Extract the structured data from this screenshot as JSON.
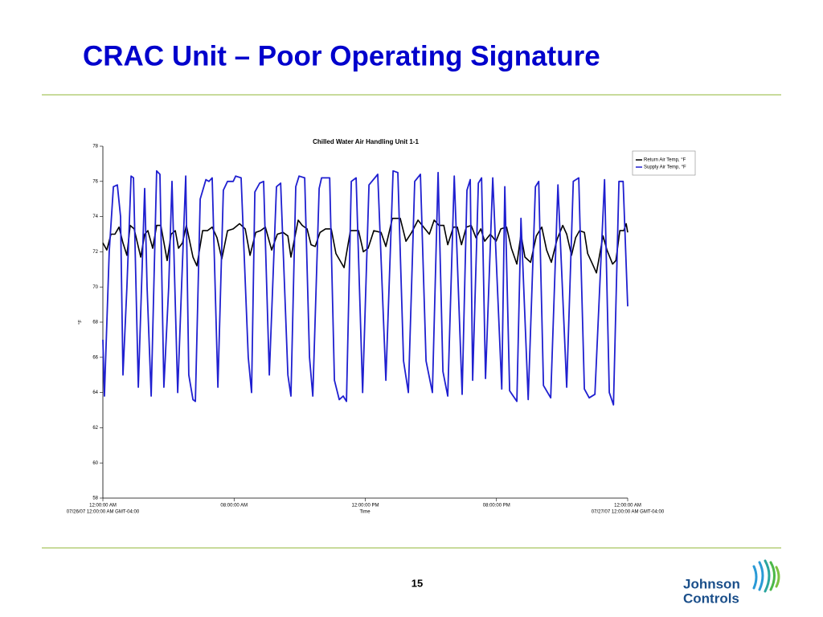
{
  "slide": {
    "title": "CRAC Unit – Poor Operating Signature",
    "page_number": "15"
  },
  "logo": {
    "line1": "Johnson",
    "line2": "Controls"
  },
  "chart_data": {
    "type": "line",
    "title": "Chilled Water Air Handling Unit 1-1",
    "xlabel": "Time",
    "ylabel": "°F",
    "xlim": [
      0,
      24
    ],
    "xticks": [
      {
        "value": 0,
        "label": "12:00:00 AM"
      },
      {
        "value": 6,
        "label": "08:00:00 AM"
      },
      {
        "value": 12,
        "label": "12:00:00 PM"
      },
      {
        "value": 18,
        "label": "08:00:00 PM"
      },
      {
        "value": 24,
        "label": "12:00:00 AM"
      }
    ],
    "xtick_dates": [
      "07/26/07 12:00:00 AM GMT-04:00",
      "07/27/07 12:00:00 AM GMT-04:00"
    ],
    "ylim": [
      58,
      78
    ],
    "yticks": [
      58,
      60,
      62,
      64,
      66,
      68,
      70,
      72,
      74,
      76,
      78
    ],
    "legend": "upper right",
    "series": [
      {
        "name": "Return Air Temp, °F",
        "color": "#000000",
        "x": [
          0,
          0.18,
          0.37,
          0.55,
          0.74,
          0.92,
          1.1,
          1.25,
          1.43,
          1.73,
          1.91,
          2.06,
          2.28,
          2.46,
          2.65,
          2.94,
          3.12,
          3.31,
          3.46,
          3.64,
          3.82,
          4.12,
          4.3,
          4.56,
          4.78,
          5.0,
          5.22,
          5.44,
          5.7,
          5.96,
          6.25,
          6.51,
          6.73,
          6.99,
          7.21,
          7.43,
          7.72,
          7.98,
          8.24,
          8.46,
          8.6,
          8.93,
          9.12,
          9.34,
          9.52,
          9.71,
          9.93,
          10.18,
          10.44,
          10.66,
          11.03,
          11.32,
          11.69,
          11.91,
          12.13,
          12.39,
          12.72,
          12.94,
          13.24,
          13.6,
          13.86,
          14.12,
          14.41,
          14.67,
          14.93,
          15.15,
          15.37,
          15.59,
          15.77,
          16.03,
          16.21,
          16.4,
          16.62,
          16.84,
          17.06,
          17.28,
          17.46,
          17.72,
          17.98,
          18.2,
          18.46,
          18.68,
          18.93,
          19.12,
          19.3,
          19.56,
          19.82,
          20.07,
          20.29,
          20.51,
          20.77,
          21.03,
          21.21,
          21.43,
          21.62,
          21.8,
          22.02,
          22.17,
          22.39,
          22.57,
          22.87,
          23.05,
          23.31,
          23.46,
          23.64,
          23.82,
          23.93,
          24
        ],
        "values": [
          72.5,
          72.1,
          73.0,
          73.0,
          73.4,
          72.5,
          71.8,
          73.5,
          73.3,
          71.7,
          73.0,
          73.2,
          72.2,
          73.5,
          73.5,
          71.5,
          73.0,
          73.2,
          72.2,
          72.5,
          73.5,
          71.7,
          71.2,
          73.2,
          73.2,
          73.4,
          72.8,
          71.6,
          73.2,
          73.3,
          73.6,
          73.3,
          71.8,
          73.1,
          73.2,
          73.4,
          72.1,
          73.0,
          73.1,
          72.9,
          71.7,
          73.8,
          73.5,
          73.3,
          72.4,
          72.3,
          73.1,
          73.3,
          73.3,
          71.9,
          71.1,
          73.2,
          73.2,
          72.0,
          72.2,
          73.2,
          73.1,
          72.3,
          73.9,
          73.9,
          72.6,
          73.1,
          73.8,
          73.4,
          73.0,
          73.8,
          73.5,
          73.5,
          72.4,
          73.4,
          73.4,
          72.4,
          73.4,
          73.5,
          72.8,
          73.3,
          72.6,
          73.0,
          72.6,
          73.3,
          73.4,
          72.2,
          71.3,
          73.0,
          71.7,
          71.4,
          72.9,
          73.4,
          72.1,
          71.4,
          72.7,
          73.5,
          73.0,
          71.8,
          72.8,
          73.2,
          73.1,
          71.9,
          71.3,
          70.8,
          72.9,
          72.1,
          71.3,
          71.5,
          73.2,
          73.2,
          73.6,
          73.1
        ]
      },
      {
        "name": "Supply Air Temp, °F",
        "color": "#1f1fd0",
        "x": [
          0,
          0.07,
          0.29,
          0.48,
          0.66,
          0.81,
          0.92,
          1.1,
          1.29,
          1.4,
          1.62,
          1.91,
          2.02,
          2.21,
          2.46,
          2.61,
          2.79,
          3.01,
          3.16,
          3.42,
          3.6,
          3.79,
          3.93,
          4.12,
          4.23,
          4.45,
          4.71,
          4.85,
          5.0,
          5.26,
          5.51,
          5.7,
          5.96,
          6.07,
          6.32,
          6.65,
          6.8,
          6.95,
          7.17,
          7.35,
          7.61,
          7.94,
          8.13,
          8.46,
          8.6,
          8.82,
          8.97,
          9.23,
          9.45,
          9.6,
          9.89,
          10.0,
          10.37,
          10.59,
          10.81,
          10.99,
          11.14,
          11.36,
          11.58,
          11.88,
          12.17,
          12.57,
          12.94,
          13.27,
          13.49,
          13.75,
          13.97,
          14.26,
          14.52,
          14.78,
          15.07,
          15.33,
          15.55,
          15.77,
          16.07,
          16.43,
          16.65,
          16.8,
          16.91,
          17.17,
          17.32,
          17.5,
          17.83,
          18.24,
          18.38,
          18.6,
          18.93,
          19.12,
          19.45,
          19.78,
          19.93,
          20.15,
          20.48,
          20.81,
          21.21,
          21.51,
          21.76,
          22.02,
          22.24,
          22.5,
          22.94,
          23.16,
          23.35,
          23.6,
          23.79,
          24
        ],
        "values": [
          67,
          63.8,
          72,
          75.7,
          75.8,
          74,
          65,
          70,
          76.3,
          76.2,
          64.3,
          75.6,
          70,
          63.8,
          76.6,
          76.4,
          64.3,
          70,
          76,
          64,
          70,
          76.3,
          65,
          63.6,
          63.5,
          75,
          76.1,
          76,
          76.2,
          64.3,
          75.5,
          76,
          76,
          76.3,
          76.2,
          66,
          64,
          75.4,
          75.9,
          76,
          65,
          75.7,
          75.9,
          65,
          63.8,
          75.7,
          76.3,
          76.2,
          66,
          63.8,
          75.6,
          76.2,
          76.2,
          64.7,
          63.6,
          63.8,
          63.5,
          76,
          76.2,
          64,
          75.8,
          76.4,
          64.7,
          76.6,
          76.5,
          65.8,
          64,
          76,
          76.4,
          65.8,
          64,
          76.5,
          65.2,
          63.8,
          76.3,
          63.9,
          75.5,
          76.1,
          64.7,
          75.9,
          76.2,
          64.8,
          76.2,
          64.2,
          75.7,
          64.1,
          63.5,
          73.9,
          63.6,
          75.7,
          76,
          64.4,
          63.7,
          75.8,
          64.3,
          76,
          76.2,
          64.2,
          63.7,
          63.9,
          76.1,
          64,
          63.3,
          76,
          76,
          68.9
        ]
      }
    ]
  }
}
